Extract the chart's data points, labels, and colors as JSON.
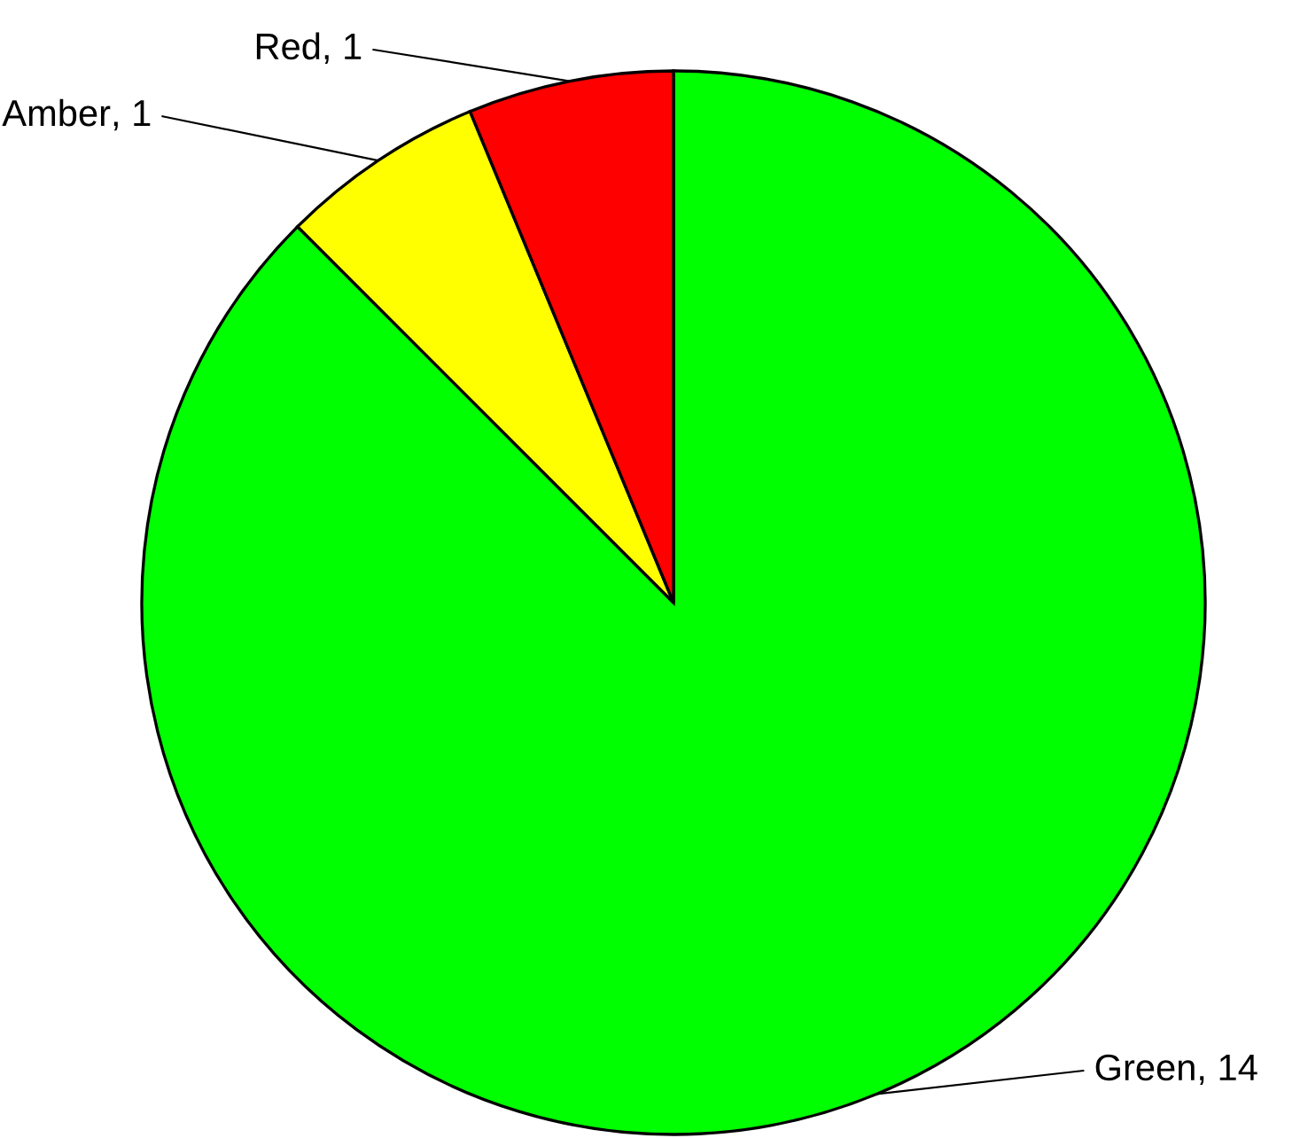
{
  "chart_data": {
    "type": "pie",
    "categories": [
      "Green",
      "Amber",
      "Red"
    ],
    "values": [
      14,
      1,
      1
    ],
    "colors": [
      "#00ff00",
      "#ffff00",
      "#ff0000"
    ],
    "value_labels": [
      ", 14",
      ", 1",
      ", 1"
    ],
    "legend": false
  }
}
